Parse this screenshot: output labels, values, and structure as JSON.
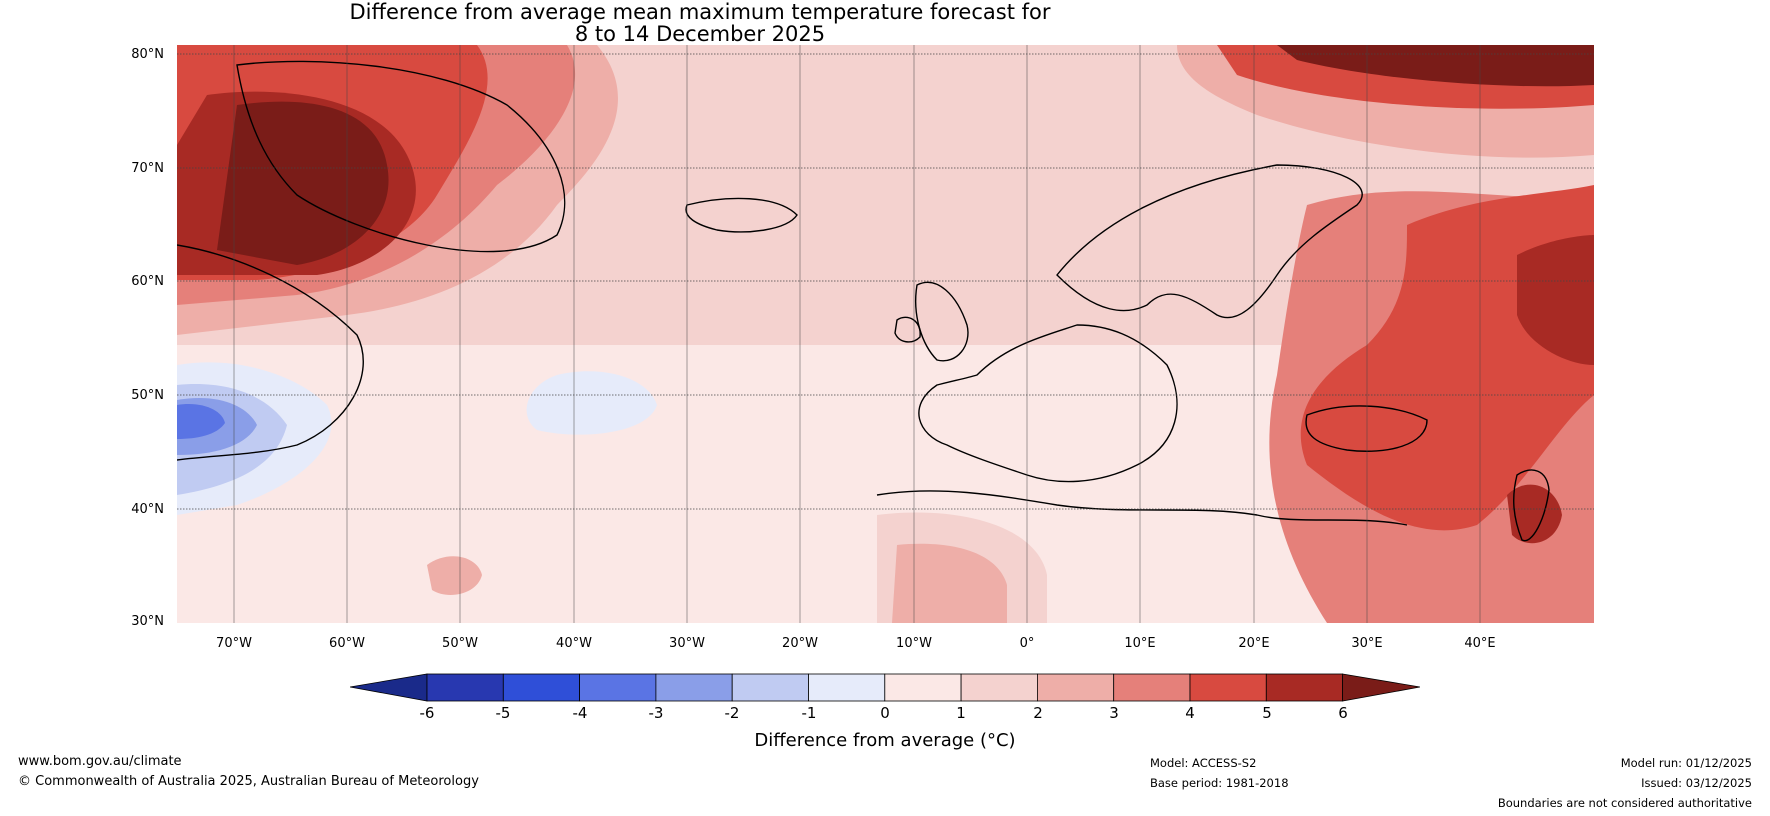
{
  "title": {
    "line1": "Difference from average mean maximum temperature forecast for",
    "line2": "8 to 14 December 2025"
  },
  "map": {
    "lat_labels": [
      "80°N",
      "70°N",
      "60°N",
      "50°N",
      "40°N",
      "30°N"
    ],
    "lon_labels": [
      "70°W",
      "60°W",
      "50°W",
      "40°W",
      "30°W",
      "20°W",
      "10°W",
      "0°",
      "10°E",
      "20°E",
      "30°E",
      "40°E"
    ],
    "lat_range": [
      30,
      81
    ],
    "lon_range": [
      -75,
      50
    ]
  },
  "colorbar": {
    "ticks": [
      "-6",
      "-5",
      "-4",
      "-3",
      "-2",
      "-1",
      "0",
      "1",
      "2",
      "3",
      "4",
      "5",
      "6"
    ],
    "colors": [
      "#1a2a8a",
      "#2838b0",
      "#2f4fd8",
      "#5a74e4",
      "#8a9ee8",
      "#c0cbf2",
      "#e6ebfa",
      "#fbe8e6",
      "#f4d2cf",
      "#eeaea8",
      "#e5807a",
      "#d84a40",
      "#a82a24",
      "#7a1c18"
    ],
    "label": "Difference from average (°C)"
  },
  "footer": {
    "website": "www.bom.gov.au/climate",
    "copyright": "© Commonwealth of Australia 2025, Australian Bureau of Meteorology",
    "model": "Model: ACCESS-S2",
    "base_period": "Base period: 1981-2018",
    "model_run": "Model run: 01/12/2025",
    "issued": "Issued: 03/12/2025",
    "boundaries": "Boundaries are not considered authoritative"
  }
}
